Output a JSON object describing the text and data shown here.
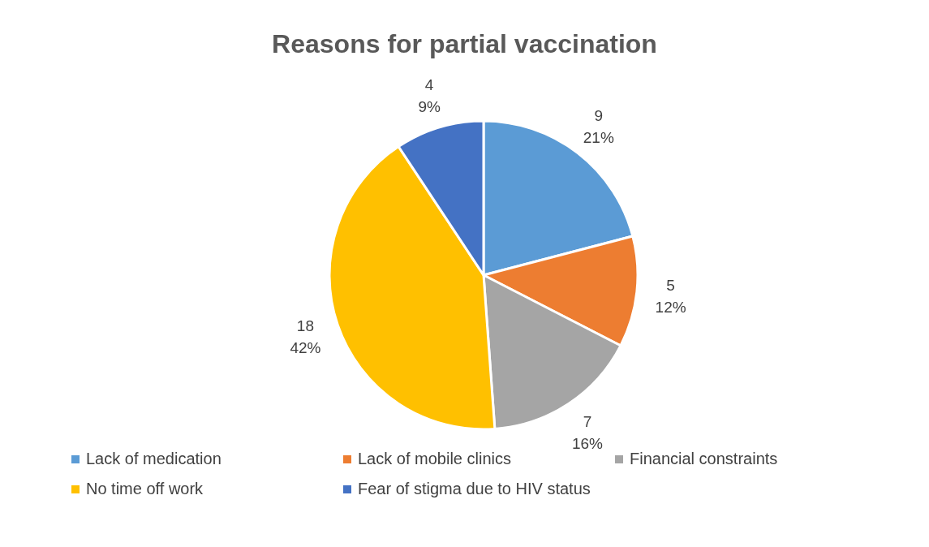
{
  "chart_data": {
    "type": "pie",
    "title": "Reasons for partial vaccination",
    "categories": [
      "Lack of medication",
      "Lack of mobile clinics",
      "Financial constraints",
      "No time off work",
      "Fear of stigma due to HIV status"
    ],
    "values": [
      9,
      5,
      7,
      18,
      4
    ],
    "colors": [
      "#5b9bd5",
      "#ed7d31",
      "#a5a5a5",
      "#ffc000",
      "#4472c4"
    ],
    "value_labels": [
      "9\n21%",
      "5\n12%",
      "7\n16%",
      "18\n42%",
      "4\n9%"
    ],
    "legend": "bottom"
  }
}
